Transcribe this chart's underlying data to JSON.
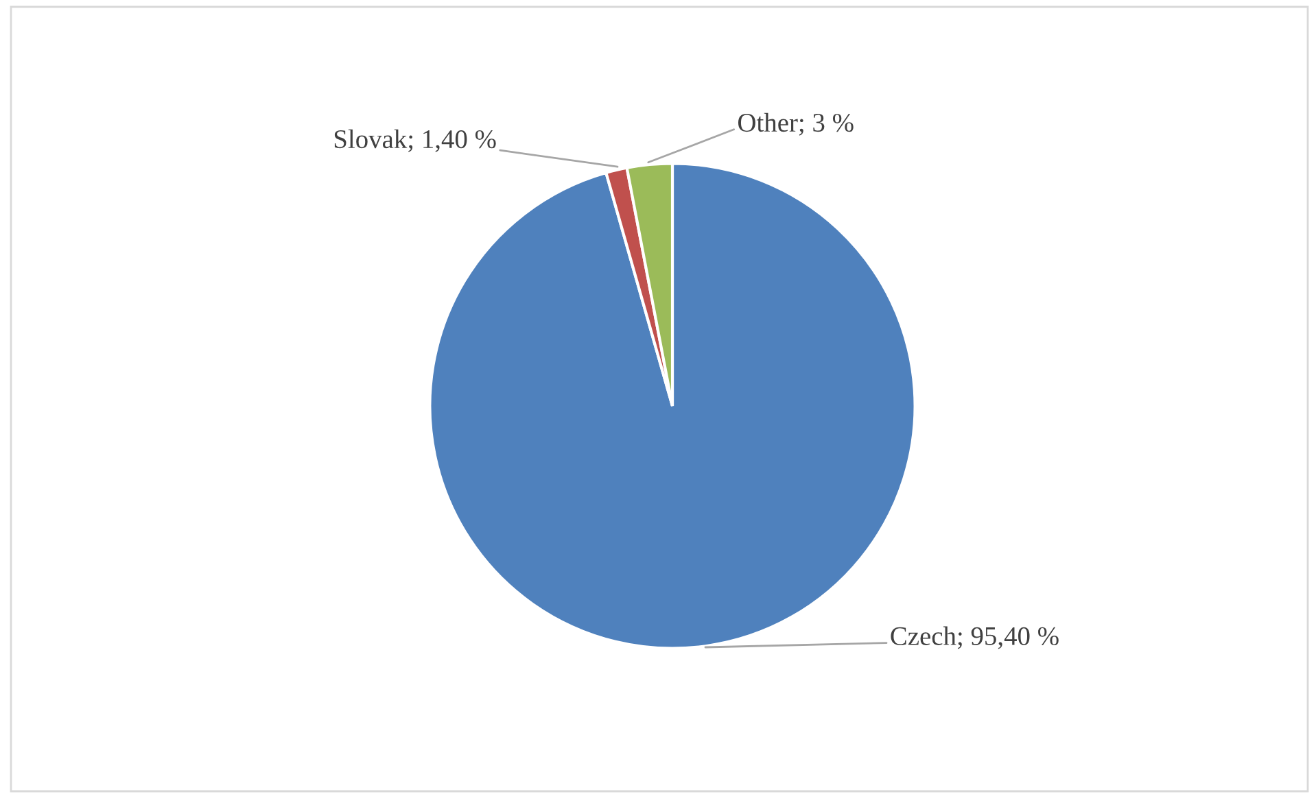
{
  "chart_data": {
    "type": "pie",
    "categories": [
      "Czech",
      "Slovak",
      "Other"
    ],
    "values": [
      95.4,
      1.4,
      3
    ],
    "value_labels": [
      "95,40 %",
      "1,40 %",
      "3 %"
    ],
    "colors": [
      "#4f81bd",
      "#c0504d",
      "#9bbb59"
    ],
    "legend": false
  }
}
